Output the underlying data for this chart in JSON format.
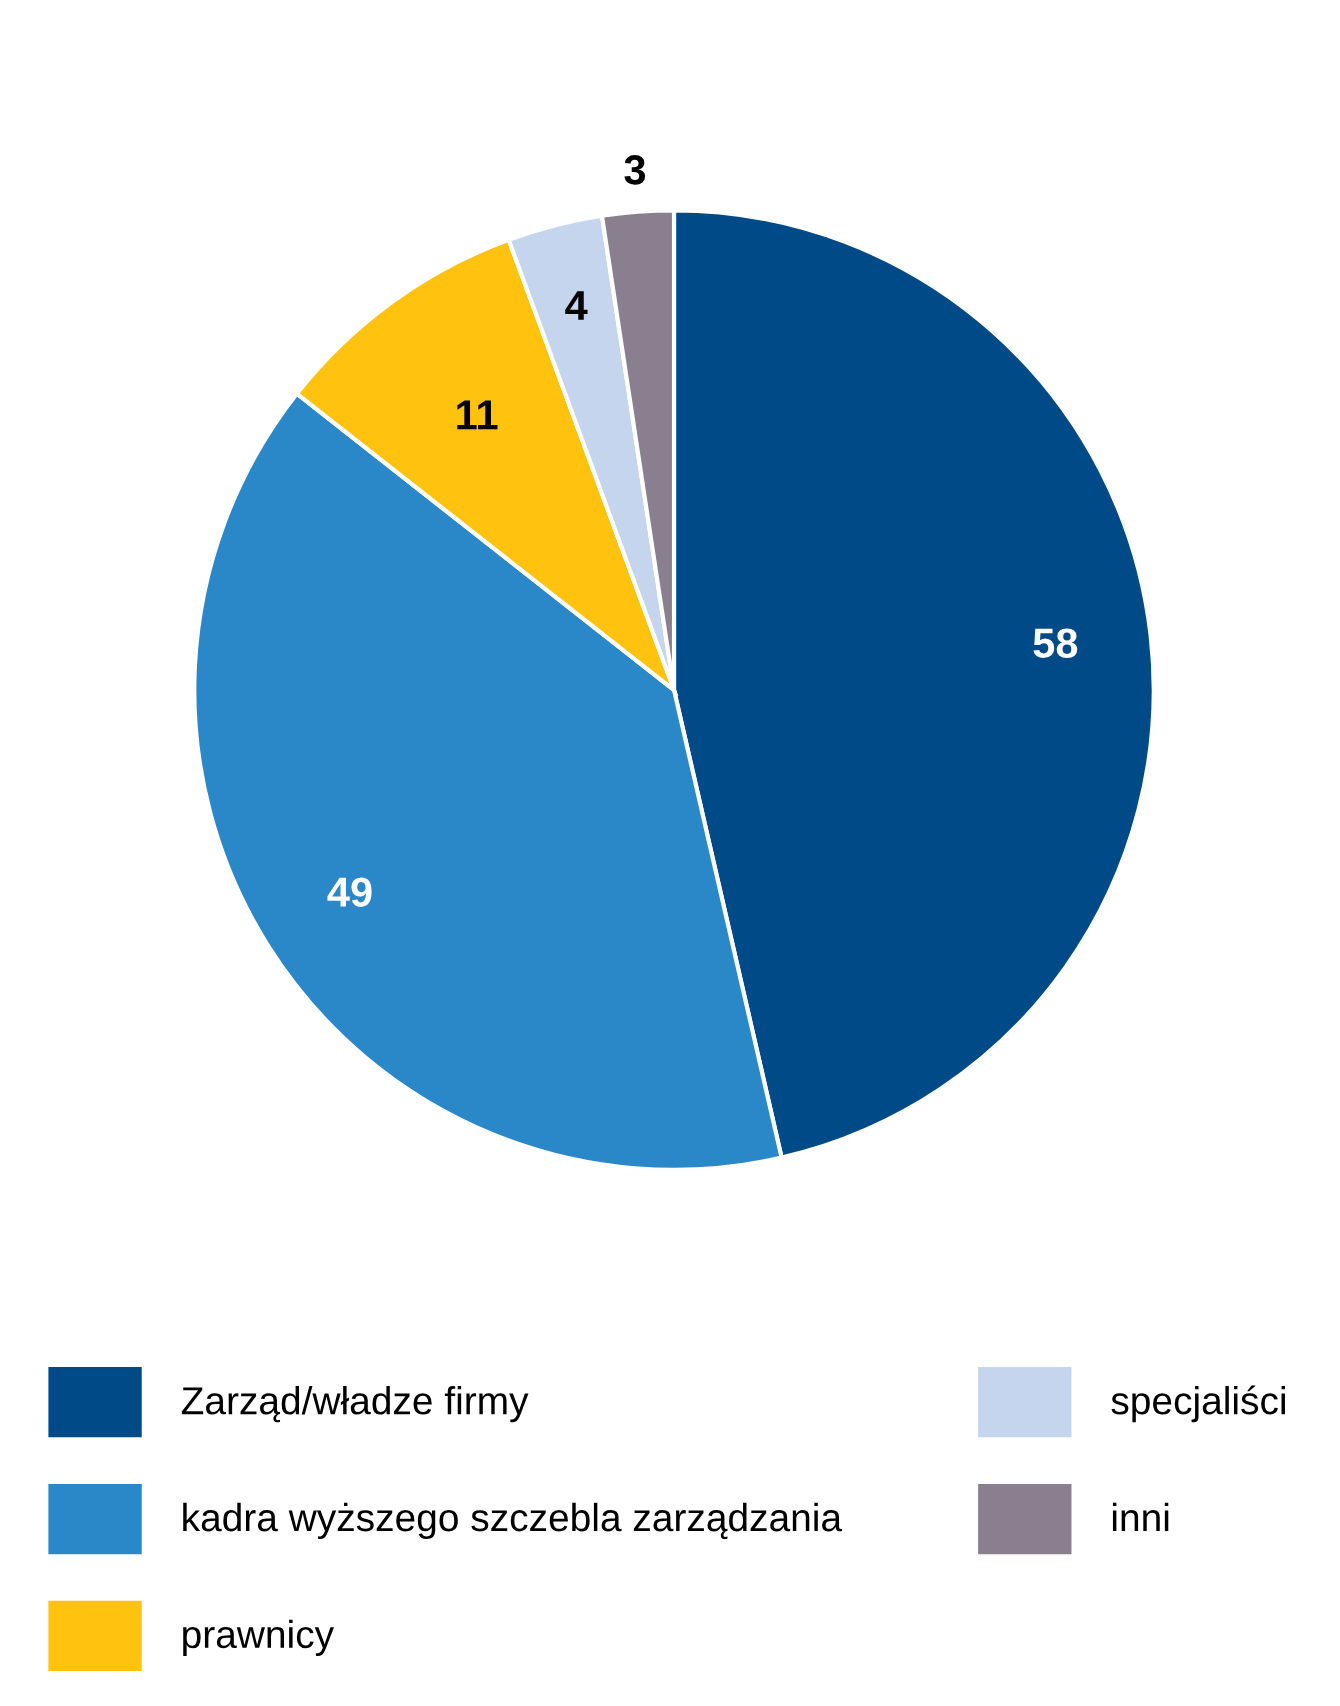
{
  "chart_data": {
    "type": "pie",
    "categories": [
      "Zarząd/władze firmy",
      "kadra wyższego szczebla zarządzania",
      "prawnicy",
      "specjaliści",
      "inni"
    ],
    "values": [
      58,
      49,
      11,
      4,
      3
    ],
    "colors": [
      "#004a87",
      "#2a87c8",
      "#ffc20e",
      "#c5d5ee",
      "#8a7f8f"
    ],
    "data_labels": true,
    "legend": "bottom"
  }
}
